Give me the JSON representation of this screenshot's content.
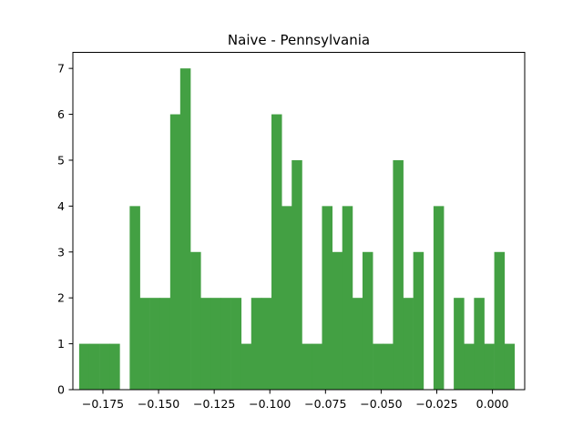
{
  "chart_data": {
    "type": "bar",
    "title": "Naive - Pennsylvania",
    "xlabel": "",
    "ylabel": "",
    "xlim": [
      -0.1885,
      0.0145
    ],
    "ylim": [
      0,
      7.35
    ],
    "bin_width": 0.00455,
    "x_ticks": [
      -0.175,
      -0.15,
      -0.125,
      -0.1,
      -0.075,
      -0.05,
      -0.025,
      0.0
    ],
    "x_tick_labels": [
      "−0.175",
      "−0.150",
      "−0.125",
      "−0.100",
      "−0.075",
      "−0.050",
      "−0.025",
      "0.000"
    ],
    "y_ticks": [
      0,
      1,
      2,
      3,
      4,
      5,
      6,
      7
    ],
    "y_tick_labels": [
      "0",
      "1",
      "2",
      "3",
      "4",
      "5",
      "6",
      "7"
    ],
    "bar_color": "#43a043",
    "grid": false,
    "bins": [
      {
        "x": -0.1834,
        "count": 1
      },
      {
        "x": -0.1789,
        "count": 1
      },
      {
        "x": -0.1743,
        "count": 1
      },
      {
        "x": -0.1698,
        "count": 1
      },
      {
        "x": -0.1607,
        "count": 4
      },
      {
        "x": -0.1562,
        "count": 2
      },
      {
        "x": -0.1516,
        "count": 2
      },
      {
        "x": -0.1471,
        "count": 2
      },
      {
        "x": -0.1425,
        "count": 6
      },
      {
        "x": -0.138,
        "count": 7
      },
      {
        "x": -0.1334,
        "count": 3
      },
      {
        "x": -0.1289,
        "count": 2
      },
      {
        "x": -0.1243,
        "count": 2
      },
      {
        "x": -0.1198,
        "count": 2
      },
      {
        "x": -0.1152,
        "count": 2
      },
      {
        "x": -0.1107,
        "count": 1
      },
      {
        "x": -0.1061,
        "count": 2
      },
      {
        "x": -0.1016,
        "count": 2
      },
      {
        "x": -0.097,
        "count": 6
      },
      {
        "x": -0.0925,
        "count": 4
      },
      {
        "x": -0.0879,
        "count": 5
      },
      {
        "x": -0.0834,
        "count": 1
      },
      {
        "x": -0.0788,
        "count": 1
      },
      {
        "x": -0.0743,
        "count": 4
      },
      {
        "x": -0.0697,
        "count": 3
      },
      {
        "x": -0.0652,
        "count": 4
      },
      {
        "x": -0.0606,
        "count": 2
      },
      {
        "x": -0.0561,
        "count": 3
      },
      {
        "x": -0.0515,
        "count": 1
      },
      {
        "x": -0.047,
        "count": 1
      },
      {
        "x": -0.0424,
        "count": 5
      },
      {
        "x": -0.0379,
        "count": 2
      },
      {
        "x": -0.0333,
        "count": 3
      },
      {
        "x": -0.0242,
        "count": 4
      },
      {
        "x": -0.0151,
        "count": 2
      },
      {
        "x": -0.0106,
        "count": 1
      },
      {
        "x": -0.006,
        "count": 2
      },
      {
        "x": -0.0015,
        "count": 1
      },
      {
        "x": 0.0031,
        "count": 3
      },
      {
        "x": 0.0076,
        "count": 1
      }
    ]
  }
}
